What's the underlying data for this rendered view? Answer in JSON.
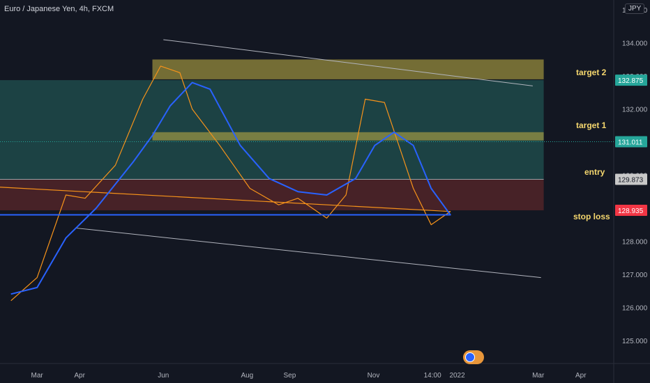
{
  "header": {
    "title": "Euro / Japanese Yen, 4h, FXCM",
    "currency": "JPY"
  },
  "annotations": {
    "target2": "target 2",
    "target1": "target 1",
    "entry": "entry",
    "stop_loss": "stop loss"
  },
  "colors": {
    "background": "#131722",
    "up_candle": "#26a69a",
    "down_candle": "#ef5350",
    "ma_fast": "#f7931a",
    "ma_slow": "#2962ff",
    "zone": "#b5a642",
    "target_box": "#1f4a4a",
    "stop_box": "#4e2328",
    "annotation": "#f5d76e"
  },
  "chart_data": {
    "type": "candlestick",
    "title": "Euro / Japanese Yen, 4h, FXCM",
    "x_ticks": [
      "Mar",
      "Apr",
      "Jun",
      "Aug",
      "Sep",
      "Nov",
      "14:00",
      "2022",
      "Mar",
      "Apr"
    ],
    "y_ticks": [
      125.0,
      126.0,
      127.0,
      128.0,
      129.0,
      130.0,
      131.0,
      132.0,
      133.0,
      134.0,
      135.0
    ],
    "ylim": [
      124.3,
      135.3
    ],
    "price_labels": [
      {
        "label": "132.875",
        "value": 132.875,
        "color": "#26a69a"
      },
      {
        "label": "131.011",
        "value": 131.011,
        "color": "#26a69a"
      },
      {
        "label": "129.873",
        "value": 129.873,
        "color": "#c8c8c8"
      },
      {
        "label": "128.935",
        "value": 128.935,
        "color": "#f23645"
      }
    ],
    "price_path": [
      [
        "Feb 10",
        125.9
      ],
      [
        "Feb 17",
        126.3
      ],
      [
        "Feb 24",
        126.6
      ],
      [
        "Mar 1",
        127.2
      ],
      [
        "Mar 8",
        129.1
      ],
      [
        "Mar 14",
        128.9
      ],
      [
        "Mar 22",
        130.1
      ],
      [
        "Mar 28",
        129.6
      ],
      [
        "Apr 1",
        128.6
      ],
      [
        "Apr 5",
        129.9
      ],
      [
        "Apr 13",
        130.2
      ],
      [
        "Apr 20",
        130.4
      ],
      [
        "Apr 27",
        129.8
      ],
      [
        "May 3",
        131.6
      ],
      [
        "May 10",
        132.4
      ],
      [
        "May 17",
        132.7
      ],
      [
        "May 24",
        133.3
      ],
      [
        "May 30",
        134.0
      ],
      [
        "Jun 6",
        133.6
      ],
      [
        "Jun 13",
        132.9
      ],
      [
        "Jun 18",
        132.2
      ],
      [
        "Jun 22",
        131.1
      ],
      [
        "Jun 28",
        132.1
      ],
      [
        "Jul 5",
        131.4
      ],
      [
        "Jul 12",
        130.4
      ],
      [
        "Jul 20",
        129.6
      ],
      [
        "Jul 27",
        129.9
      ],
      [
        "Aug 3",
        129.7
      ],
      [
        "Aug 10",
        128.4
      ],
      [
        "Aug 17",
        129.1
      ],
      [
        "Aug 24",
        128.8
      ],
      [
        "Aug 31",
        129.2
      ],
      [
        "Sep 7",
        129.9
      ],
      [
        "Sep 14",
        129.7
      ],
      [
        "Sep 21",
        128.2
      ],
      [
        "Sep 28",
        128.6
      ],
      [
        "Oct 5",
        129.4
      ],
      [
        "Oct 12",
        129.1
      ],
      [
        "Oct 19",
        132.1
      ],
      [
        "Oct 26",
        133.2
      ],
      [
        "Nov 2",
        132.4
      ],
      [
        "Nov 9",
        131.9
      ],
      [
        "Nov 16",
        130.7
      ],
      [
        "Nov 23",
        129.4
      ],
      [
        "Nov 30",
        128.6
      ],
      [
        "Dec 6",
        128.1
      ],
      [
        "Dec 13",
        128.0
      ],
      [
        "Dec 20",
        128.4
      ],
      [
        "Dec 27",
        129.2
      ],
      [
        "Dec 31",
        130.3
      ],
      [
        "Jan 4",
        131.0
      ]
    ],
    "ma_fast_path": [
      [
        "Feb 10",
        126.2
      ],
      [
        "Mar 1",
        126.9
      ],
      [
        "Mar 22",
        129.4
      ],
      [
        "Apr 5",
        129.3
      ],
      [
        "Apr 27",
        130.3
      ],
      [
        "May 17",
        132.3
      ],
      [
        "May 30",
        133.3
      ],
      [
        "Jun 13",
        133.1
      ],
      [
        "Jun 22",
        132.0
      ],
      [
        "Jul 12",
        130.9
      ],
      [
        "Aug 3",
        129.6
      ],
      [
        "Aug 24",
        129.1
      ],
      [
        "Sep 7",
        129.3
      ],
      [
        "Sep 28",
        128.7
      ],
      [
        "Oct 12",
        129.4
      ],
      [
        "Oct 26",
        132.3
      ],
      [
        "Nov 9",
        132.2
      ],
      [
        "Nov 30",
        129.6
      ],
      [
        "Dec 13",
        128.5
      ],
      [
        "Dec 27",
        128.9
      ],
      [
        "Jan 4",
        129.7
      ]
    ],
    "ma_slow_path": [
      [
        "Feb 10",
        126.4
      ],
      [
        "Mar 1",
        126.6
      ],
      [
        "Mar 22",
        128.1
      ],
      [
        "Apr 13",
        129.0
      ],
      [
        "May 10",
        130.4
      ],
      [
        "May 24",
        131.2
      ],
      [
        "Jun 6",
        132.1
      ],
      [
        "Jun 22",
        132.8
      ],
      [
        "Jul 5",
        132.6
      ],
      [
        "Jul 27",
        130.9
      ],
      [
        "Aug 17",
        129.9
      ],
      [
        "Sep 7",
        129.5
      ],
      [
        "Sep 28",
        129.4
      ],
      [
        "Oct 19",
        129.9
      ],
      [
        "Nov 2",
        130.9
      ],
      [
        "Nov 16",
        131.3
      ],
      [
        "Nov 30",
        130.9
      ],
      [
        "Dec 13",
        129.6
      ],
      [
        "Dec 27",
        128.8
      ],
      [
        "Jan 4",
        128.8
      ]
    ],
    "zones": [
      {
        "name": "target 2",
        "from": "May 24",
        "to": "Mar 5 2022",
        "low": 132.9,
        "high": 133.5
      },
      {
        "name": "target 1",
        "from": "May 24",
        "to": "Mar 5 2022",
        "low": 131.05,
        "high": 131.3
      }
    ],
    "position": {
      "from": "Jan 4",
      "to": "Mar 5 2022",
      "target": 132.875,
      "entry": 129.873,
      "stop": 128.935
    },
    "trendlines": [
      {
        "from": [
          "Jun 1",
          134.1
        ],
        "to": [
          "Feb 25 2022",
          132.7
        ]
      },
      {
        "from": [
          "Mar 29",
          128.4
        ],
        "to": [
          "Mar 3 2022",
          126.9
        ]
      }
    ],
    "last_price": 131.011
  }
}
